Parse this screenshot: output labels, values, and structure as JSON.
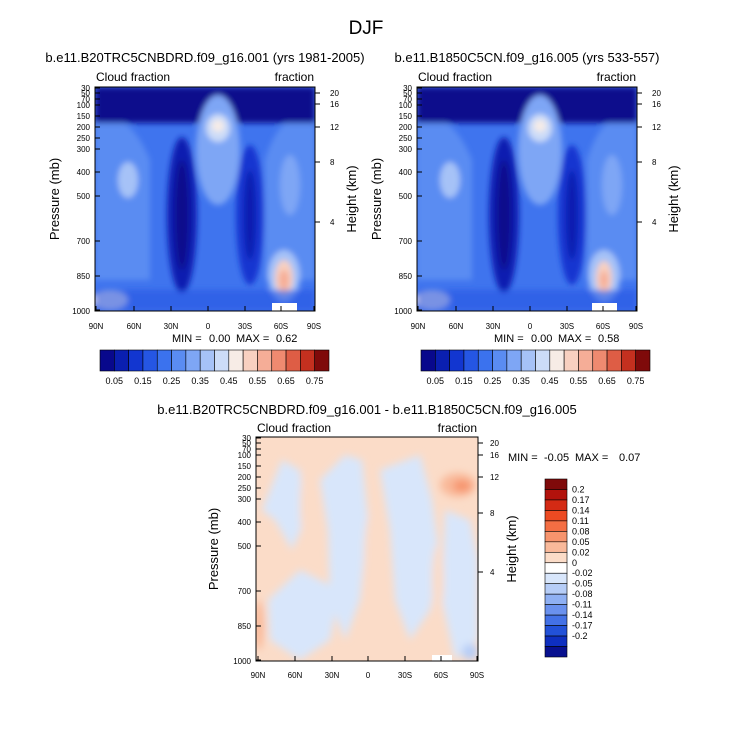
{
  "figure": {
    "title": "DJF"
  },
  "chart_data": [
    {
      "type": "heatmap",
      "title": "b.e11.B20TRC5CNBDRD.f09_g16.001 (yrs 1981-2005)",
      "left_label": "Cloud fraction",
      "right_label": "fraction",
      "ylabel": "Pressure (mb)",
      "y2label": "Height (km)",
      "x_ticks": [
        "90N",
        "60N",
        "30N",
        "0",
        "30S",
        "60S",
        "90S"
      ],
      "y_ticks": [
        30,
        50,
        70,
        100,
        150,
        200,
        250,
        300,
        400,
        500,
        700,
        850,
        1000
      ],
      "height_ticks": [
        4,
        8,
        12,
        16,
        20
      ],
      "min_label": "MIN =",
      "min": "0.00",
      "max_label": "MAX =",
      "max": "0.62",
      "colorbar_labels": [
        "0.05",
        "0.15",
        "0.25",
        "0.35",
        "0.45",
        "0.55",
        "0.65",
        "0.75"
      ]
    },
    {
      "type": "heatmap",
      "title": "b.e11.B1850C5CN.f09_g16.005 (yrs 533-557)",
      "left_label": "Cloud fraction",
      "right_label": "fraction",
      "ylabel": "Pressure (mb)",
      "y2label": "Height (km)",
      "x_ticks": [
        "90N",
        "60N",
        "30N",
        "0",
        "30S",
        "60S",
        "90S"
      ],
      "y_ticks": [
        30,
        50,
        70,
        100,
        150,
        200,
        250,
        300,
        400,
        500,
        700,
        850,
        1000
      ],
      "height_ticks": [
        4,
        8,
        12,
        16,
        20
      ],
      "min_label": "MIN =",
      "min": "0.00",
      "max_label": "MAX =",
      "max": "0.58",
      "colorbar_labels": [
        "0.05",
        "0.15",
        "0.25",
        "0.35",
        "0.45",
        "0.55",
        "0.65",
        "0.75"
      ]
    },
    {
      "type": "heatmap",
      "title": "b.e11.B20TRC5CNBDRD.f09_g16.001 - b.e11.B1850C5CN.f09_g16.005",
      "left_label": "Cloud fraction",
      "right_label": "fraction",
      "ylabel": "Pressure (mb)",
      "y2label": "Height (km)",
      "x_ticks": [
        "90N",
        "60N",
        "30N",
        "0",
        "30S",
        "60S",
        "90S"
      ],
      "y_ticks": [
        30,
        50,
        70,
        100,
        150,
        200,
        250,
        300,
        400,
        500,
        700,
        850,
        1000
      ],
      "height_ticks": [
        4,
        8,
        12,
        16,
        20
      ],
      "min_label": "MIN =",
      "min": "-0.05",
      "max_label": "MAX =",
      "max": "0.07",
      "colorbar_labels": [
        "0.2",
        "0.17",
        "0.14",
        "0.11",
        "0.08",
        "0.05",
        "0.02",
        "0",
        "-0.02",
        "-0.05",
        "-0.08",
        "-0.11",
        "-0.14",
        "-0.17",
        "-0.2"
      ]
    }
  ],
  "palettes": {
    "fraction": [
      "#08088c",
      "#0a1fb0",
      "#1236d0",
      "#2556e3",
      "#3b72ee",
      "#5a8cf2",
      "#7ea6f5",
      "#a6c2f7",
      "#ccdcf8",
      "#f7ece6",
      "#f8d0c0",
      "#f5ad97",
      "#ef8a70",
      "#de5d45",
      "#c4301f",
      "#7f0a0a"
    ],
    "difference": [
      "#7f0a0a",
      "#b2120c",
      "#d42a14",
      "#ec4a22",
      "#f46e43",
      "#f7946d",
      "#f9b99a",
      "#fbdcc8",
      "#ffffff",
      "#d8e6fb",
      "#b6cdf7",
      "#8fb0f3",
      "#6a91ee",
      "#4371e6",
      "#2251d8",
      "#0e2fc0",
      "#08108f"
    ]
  }
}
